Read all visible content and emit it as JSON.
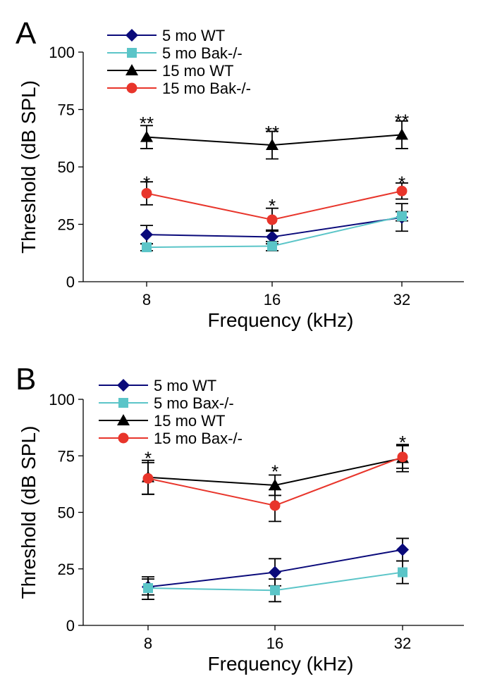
{
  "chart_data": [
    {
      "panel_label": "A",
      "type": "line",
      "xlabel": "Frequency (kHz)",
      "ylabel": "Threshold (dB SPL)",
      "categories": [
        "8",
        "16",
        "32"
      ],
      "ylim": [
        0,
        100
      ],
      "yticks": [
        "0",
        "25",
        "50",
        "75",
        "100"
      ],
      "grid": false,
      "legend_position": "top-left",
      "series": [
        {
          "name": "5 mo WT",
          "color": "#0a0a7a",
          "marker": "diamond",
          "values": [
            20.5,
            19.5,
            28
          ],
          "errors": [
            4,
            3,
            6
          ]
        },
        {
          "name": "5 mo Bak-/-",
          "color": "#5bc5c8",
          "marker": "square",
          "values": [
            15,
            15.5,
            28.5
          ],
          "errors": [
            1.5,
            2,
            2
          ]
        },
        {
          "name": "15 mo WT",
          "color": "#000000",
          "marker": "triangle",
          "values": [
            63,
            59.5,
            64
          ],
          "errors": [
            5,
            6,
            6
          ]
        },
        {
          "name": "15 mo Bak-/-",
          "color": "#e8352b",
          "marker": "circle",
          "values": [
            38.5,
            27,
            39.5
          ],
          "errors": [
            5,
            5,
            3.5
          ]
        }
      ],
      "annotations": [
        {
          "x": "8",
          "y": 70,
          "text": "**"
        },
        {
          "x": "16",
          "y": 66,
          "text": "**"
        },
        {
          "x": "32",
          "y": 71,
          "text": "**"
        },
        {
          "x": "8",
          "y": 44,
          "text": "*"
        },
        {
          "x": "16",
          "y": 34,
          "text": "*"
        },
        {
          "x": "32",
          "y": 44,
          "text": "*"
        }
      ]
    },
    {
      "panel_label": "B",
      "type": "line",
      "xlabel": "Frequency (kHz)",
      "ylabel": "Threshold (dB SPL)",
      "categories": [
        "8",
        "16",
        "32"
      ],
      "ylim": [
        0,
        100
      ],
      "yticks": [
        "0",
        "25",
        "50",
        "75",
        "100"
      ],
      "grid": false,
      "legend_position": "top-left",
      "series": [
        {
          "name": "5 mo WT",
          "color": "#0a0a7a",
          "marker": "diamond",
          "values": [
            17,
            23.5,
            33.5
          ],
          "errors": [
            3.5,
            6,
            5
          ]
        },
        {
          "name": "5 mo Bax-/-",
          "color": "#5bc5c8",
          "marker": "square",
          "values": [
            16.5,
            15.5,
            23.5
          ],
          "errors": [
            5,
            5,
            5
          ]
        },
        {
          "name": "15 mo WT",
          "color": "#000000",
          "marker": "triangle",
          "values": [
            65.5,
            62,
            74
          ],
          "errors": [
            7.5,
            4.5,
            6
          ]
        },
        {
          "name": "15 mo Bax-/-",
          "color": "#e8352b",
          "marker": "circle",
          "values": [
            65,
            53,
            74.5
          ],
          "errors": [
            7,
            7,
            5
          ]
        }
      ],
      "annotations": [
        {
          "x": "8",
          "y": 75,
          "text": "*"
        },
        {
          "x": "16",
          "y": 69,
          "text": "*"
        },
        {
          "x": "32",
          "y": 82,
          "text": "*"
        }
      ]
    }
  ]
}
